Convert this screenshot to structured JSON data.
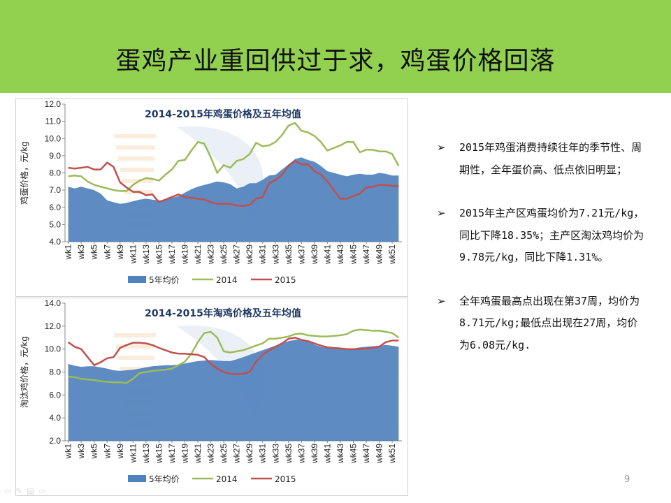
{
  "slide": {
    "title": "蛋鸡产业重回供过于求，鸡蛋价格回落",
    "page_number": "9",
    "bullets": [
      {
        "mark": "➢",
        "text": "2015年鸡蛋消费持续往年的季节性、周期性，全年蛋价高、低点依旧明显；"
      },
      {
        "mark": "➢",
        "text": "2015年主产区鸡蛋均价为7.21元/kg，同比下降18.35%；主产区淘汰鸡均价为9.78元/kg，同比下降1.31%。"
      },
      {
        "mark": "➢",
        "text": "全年鸡蛋最高点出现在第37周，均价为8.71元/kg;最低点出现在27周，均价为6.08元/kg."
      }
    ]
  },
  "colors": {
    "title_bar": "#92d050",
    "avg5": "#4f81bd",
    "y2014": "#9bbb59",
    "y2015": "#c0504d"
  },
  "chart_data": [
    {
      "type": "area",
      "title": "2014-2015年鸡蛋价格及五年均值",
      "ylabel": "鸡蛋价格，元/kg",
      "xlabel": "",
      "ylim": [
        4.0,
        12.0
      ],
      "yticks": [
        "4.0",
        "5.0",
        "6.0",
        "7.0",
        "8.0",
        "9.0",
        "10.0",
        "11.0",
        "12.0"
      ],
      "ytick_values": [
        4,
        5,
        6,
        7,
        8,
        9,
        10,
        11,
        12
      ],
      "xtick_labels": [
        "wk1",
        "wk3",
        "wk5",
        "wk7",
        "wk9",
        "wk11",
        "wk13",
        "wk15",
        "wk17",
        "wk19",
        "wk21",
        "wk23",
        "wk25",
        "wk27",
        "wk29",
        "wk31",
        "wk33",
        "wk35",
        "wk37",
        "wk39",
        "wk41",
        "wk43",
        "wk45",
        "wk47",
        "wk49",
        "wk51"
      ],
      "legend_position": "bottom",
      "series": [
        {
          "name": "5年均价",
          "kind": "area",
          "color": "#4f81bd",
          "values": [
            7.2,
            7.1,
            7.2,
            7.1,
            7.0,
            6.8,
            6.4,
            6.3,
            6.2,
            6.25,
            6.35,
            6.45,
            6.5,
            6.45,
            6.4,
            6.45,
            6.55,
            6.65,
            6.85,
            7.05,
            7.2,
            7.3,
            7.4,
            7.5,
            7.45,
            7.35,
            7.1,
            7.2,
            7.4,
            7.4,
            7.6,
            7.85,
            7.9,
            8.2,
            8.5,
            8.8,
            8.9,
            8.75,
            8.65,
            8.4,
            8.1,
            8.0,
            7.9,
            7.8,
            7.9,
            7.95,
            7.9,
            7.9,
            8.0,
            7.95,
            7.85,
            7.85
          ]
        },
        {
          "name": "2014",
          "kind": "line",
          "color": "#9bbb59",
          "values": [
            7.8,
            7.85,
            7.8,
            7.5,
            7.3,
            7.2,
            7.1,
            7.0,
            6.95,
            6.95,
            7.3,
            7.55,
            7.7,
            7.65,
            7.55,
            7.9,
            8.2,
            8.7,
            8.75,
            9.3,
            9.8,
            9.7,
            8.9,
            8.0,
            8.45,
            8.3,
            8.7,
            8.8,
            9.1,
            9.75,
            9.55,
            9.6,
            9.8,
            10.2,
            10.75,
            10.9,
            10.45,
            10.35,
            10.15,
            9.8,
            9.3,
            9.45,
            9.6,
            9.8,
            9.8,
            9.2,
            9.35,
            9.35,
            9.25,
            9.25,
            9.1,
            8.4
          ]
        },
        {
          "name": "2015",
          "kind": "line",
          "color": "#c0504d",
          "values": [
            8.3,
            8.25,
            8.3,
            8.35,
            8.2,
            8.2,
            8.6,
            8.35,
            7.45,
            7.15,
            6.9,
            6.9,
            6.7,
            6.75,
            6.3,
            6.45,
            6.6,
            6.75,
            6.6,
            6.55,
            6.5,
            6.45,
            6.3,
            6.2,
            6.2,
            6.2,
            6.1,
            6.08,
            6.15,
            6.5,
            6.6,
            7.4,
            7.6,
            7.9,
            8.4,
            8.7,
            8.5,
            8.5,
            8.1,
            7.9,
            7.5,
            7.0,
            6.5,
            6.5,
            6.65,
            6.8,
            7.15,
            7.2,
            7.3,
            7.3,
            7.25,
            7.25
          ]
        }
      ]
    },
    {
      "type": "area",
      "title": "2014-2015年淘鸡价格及五年均值",
      "ylabel": "淘汰鸡价格，元/kg",
      "xlabel": "",
      "ylim": [
        2.0,
        14.0
      ],
      "yticks": [
        "2.0",
        "4.0",
        "6.0",
        "8.0",
        "10.0",
        "12.0",
        "14.0"
      ],
      "ytick_values": [
        2,
        4,
        6,
        8,
        10,
        12,
        14
      ],
      "xtick_labels": [
        "wk1",
        "wk3",
        "wk5",
        "wk7",
        "wk9",
        "wk11",
        "wk13",
        "wk15",
        "wk17",
        "wk19",
        "wk21",
        "wk23",
        "wk25",
        "wk27",
        "wk29",
        "wk31",
        "wk33",
        "wk35",
        "wk37",
        "wk39",
        "wk41",
        "wk43",
        "wk45",
        "wk47",
        "wk49",
        "wk51"
      ],
      "legend_position": "bottom",
      "series": [
        {
          "name": "5年均价",
          "kind": "area",
          "color": "#4f81bd",
          "values": [
            8.7,
            8.55,
            8.45,
            8.5,
            8.5,
            8.4,
            8.3,
            8.15,
            8.1,
            8.15,
            8.2,
            8.3,
            8.4,
            8.5,
            8.55,
            8.6,
            8.6,
            8.65,
            8.75,
            8.85,
            8.95,
            9.0,
            9.05,
            9.0,
            8.95,
            8.95,
            9.1,
            9.3,
            9.5,
            9.7,
            9.9,
            10.1,
            10.3,
            10.5,
            10.7,
            10.8,
            10.8,
            10.7,
            10.4,
            10.2,
            10.1,
            10.05,
            10.0,
            10.0,
            10.05,
            10.15,
            10.2,
            10.25,
            10.3,
            10.35,
            10.3,
            10.2
          ]
        },
        {
          "name": "2014",
          "kind": "line",
          "color": "#9bbb59",
          "values": [
            7.6,
            7.55,
            7.4,
            7.35,
            7.3,
            7.2,
            7.15,
            7.1,
            7.1,
            7.05,
            7.4,
            7.9,
            8.0,
            8.1,
            8.15,
            8.2,
            8.3,
            8.6,
            8.9,
            9.6,
            10.6,
            11.4,
            11.5,
            11.0,
            9.8,
            9.7,
            9.8,
            9.9,
            10.1,
            10.3,
            10.5,
            10.9,
            10.9,
            11.0,
            11.1,
            11.3,
            11.35,
            11.2,
            11.15,
            11.1,
            11.1,
            11.15,
            11.2,
            11.3,
            11.6,
            11.7,
            11.65,
            11.6,
            11.6,
            11.5,
            11.4,
            11.0
          ]
        },
        {
          "name": "2015",
          "kind": "line",
          "color": "#c0504d",
          "values": [
            10.6,
            10.2,
            10.0,
            9.3,
            8.6,
            8.85,
            9.2,
            9.3,
            10.1,
            10.35,
            10.55,
            10.55,
            10.5,
            10.35,
            10.1,
            9.9,
            9.7,
            9.6,
            9.6,
            9.55,
            9.5,
            9.3,
            8.7,
            8.3,
            8.0,
            7.85,
            7.8,
            7.85,
            8.0,
            8.9,
            9.5,
            9.9,
            10.2,
            10.5,
            10.9,
            11.0,
            10.8,
            10.7,
            10.5,
            10.3,
            10.15,
            10.1,
            10.05,
            10.0,
            10.0,
            10.0,
            10.05,
            10.1,
            10.2,
            10.6,
            10.75,
            10.75
          ]
        }
      ]
    }
  ]
}
